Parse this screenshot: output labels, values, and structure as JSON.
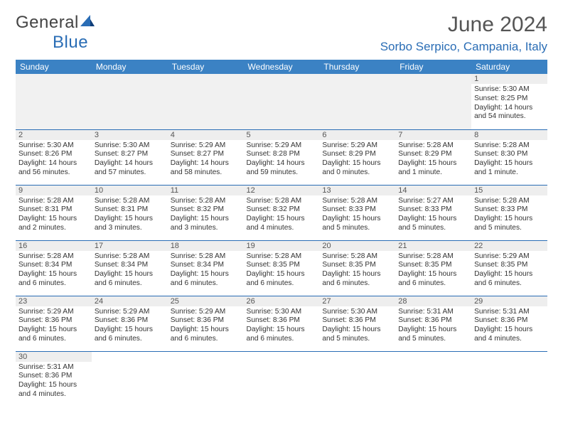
{
  "brand": {
    "general": "General",
    "blue": "Blue"
  },
  "title": "June 2024",
  "location": "Sorbo Serpico, Campania, Italy",
  "colors": {
    "header_bg": "#3b82c4",
    "header_fg": "#ffffff",
    "accent": "#2a6db5",
    "gridline": "#2a6db5",
    "daynum_bg": "#eeeeee",
    "page_bg": "#ffffff",
    "text": "#333333"
  },
  "weekdays": [
    "Sunday",
    "Monday",
    "Tuesday",
    "Wednesday",
    "Thursday",
    "Friday",
    "Saturday"
  ],
  "days": {
    "1": {
      "sunrise": "5:30 AM",
      "sunset": "8:25 PM",
      "daylight": "14 hours and 54 minutes."
    },
    "2": {
      "sunrise": "5:30 AM",
      "sunset": "8:26 PM",
      "daylight": "14 hours and 56 minutes."
    },
    "3": {
      "sunrise": "5:30 AM",
      "sunset": "8:27 PM",
      "daylight": "14 hours and 57 minutes."
    },
    "4": {
      "sunrise": "5:29 AM",
      "sunset": "8:27 PM",
      "daylight": "14 hours and 58 minutes."
    },
    "5": {
      "sunrise": "5:29 AM",
      "sunset": "8:28 PM",
      "daylight": "14 hours and 59 minutes."
    },
    "6": {
      "sunrise": "5:29 AM",
      "sunset": "8:29 PM",
      "daylight": "15 hours and 0 minutes."
    },
    "7": {
      "sunrise": "5:28 AM",
      "sunset": "8:29 PM",
      "daylight": "15 hours and 1 minute."
    },
    "8": {
      "sunrise": "5:28 AM",
      "sunset": "8:30 PM",
      "daylight": "15 hours and 1 minute."
    },
    "9": {
      "sunrise": "5:28 AM",
      "sunset": "8:31 PM",
      "daylight": "15 hours and 2 minutes."
    },
    "10": {
      "sunrise": "5:28 AM",
      "sunset": "8:31 PM",
      "daylight": "15 hours and 3 minutes."
    },
    "11": {
      "sunrise": "5:28 AM",
      "sunset": "8:32 PM",
      "daylight": "15 hours and 3 minutes."
    },
    "12": {
      "sunrise": "5:28 AM",
      "sunset": "8:32 PM",
      "daylight": "15 hours and 4 minutes."
    },
    "13": {
      "sunrise": "5:28 AM",
      "sunset": "8:33 PM",
      "daylight": "15 hours and 5 minutes."
    },
    "14": {
      "sunrise": "5:27 AM",
      "sunset": "8:33 PM",
      "daylight": "15 hours and 5 minutes."
    },
    "15": {
      "sunrise": "5:28 AM",
      "sunset": "8:33 PM",
      "daylight": "15 hours and 5 minutes."
    },
    "16": {
      "sunrise": "5:28 AM",
      "sunset": "8:34 PM",
      "daylight": "15 hours and 6 minutes."
    },
    "17": {
      "sunrise": "5:28 AM",
      "sunset": "8:34 PM",
      "daylight": "15 hours and 6 minutes."
    },
    "18": {
      "sunrise": "5:28 AM",
      "sunset": "8:34 PM",
      "daylight": "15 hours and 6 minutes."
    },
    "19": {
      "sunrise": "5:28 AM",
      "sunset": "8:35 PM",
      "daylight": "15 hours and 6 minutes."
    },
    "20": {
      "sunrise": "5:28 AM",
      "sunset": "8:35 PM",
      "daylight": "15 hours and 6 minutes."
    },
    "21": {
      "sunrise": "5:28 AM",
      "sunset": "8:35 PM",
      "daylight": "15 hours and 6 minutes."
    },
    "22": {
      "sunrise": "5:29 AM",
      "sunset": "8:35 PM",
      "daylight": "15 hours and 6 minutes."
    },
    "23": {
      "sunrise": "5:29 AM",
      "sunset": "8:36 PM",
      "daylight": "15 hours and 6 minutes."
    },
    "24": {
      "sunrise": "5:29 AM",
      "sunset": "8:36 PM",
      "daylight": "15 hours and 6 minutes."
    },
    "25": {
      "sunrise": "5:29 AM",
      "sunset": "8:36 PM",
      "daylight": "15 hours and 6 minutes."
    },
    "26": {
      "sunrise": "5:30 AM",
      "sunset": "8:36 PM",
      "daylight": "15 hours and 6 minutes."
    },
    "27": {
      "sunrise": "5:30 AM",
      "sunset": "8:36 PM",
      "daylight": "15 hours and 5 minutes."
    },
    "28": {
      "sunrise": "5:31 AM",
      "sunset": "8:36 PM",
      "daylight": "15 hours and 5 minutes."
    },
    "29": {
      "sunrise": "5:31 AM",
      "sunset": "8:36 PM",
      "daylight": "15 hours and 4 minutes."
    },
    "30": {
      "sunrise": "5:31 AM",
      "sunset": "8:36 PM",
      "daylight": "15 hours and 4 minutes."
    }
  },
  "labels": {
    "sunrise": "Sunrise:",
    "sunset": "Sunset:",
    "daylight": "Daylight:"
  },
  "layout": {
    "first_weekday_index": 6,
    "num_days": 30,
    "cols": 7
  }
}
